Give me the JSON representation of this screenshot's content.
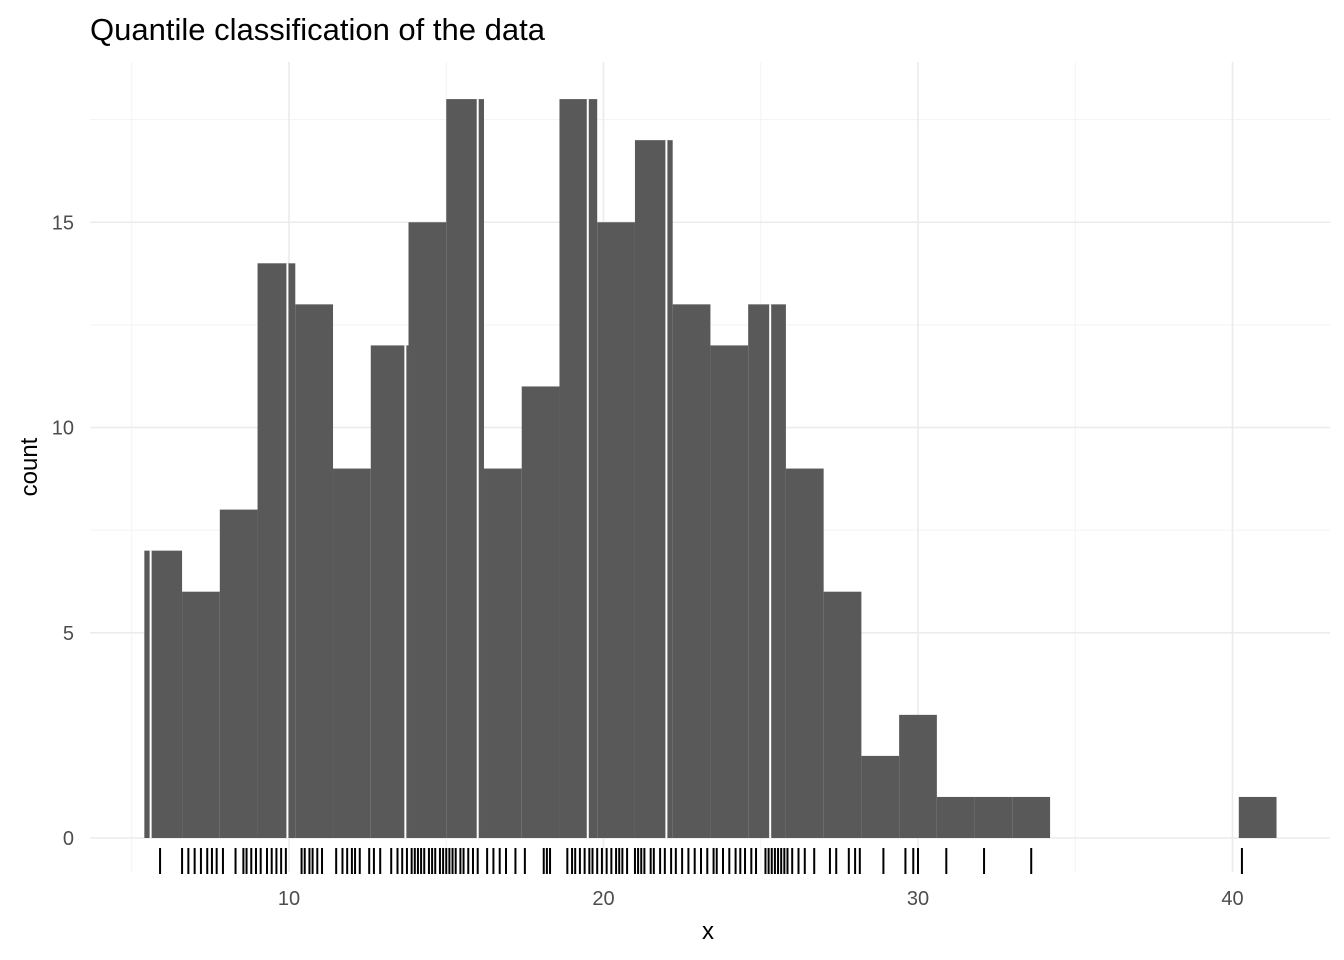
{
  "chart_data": {
    "type": "bar",
    "title": "Quantile classification of the data",
    "xlabel": "x",
    "ylabel": "count",
    "xlim": [
      5,
      43
    ],
    "ylim": [
      0,
      18.9
    ],
    "x_ticks": [
      10,
      20,
      30,
      40
    ],
    "y_ticks": [
      0,
      5,
      10,
      15
    ],
    "x_tick_labels": [
      "10",
      "20",
      "30",
      "40"
    ],
    "y_tick_labels": [
      "0",
      "5",
      "10",
      "15"
    ],
    "grid": true,
    "legend": "none",
    "bin_width": 1.2,
    "bins": [
      {
        "x0": 5.4,
        "x1": 6.6,
        "count": 7
      },
      {
        "x0": 6.6,
        "x1": 7.8,
        "count": 6
      },
      {
        "x0": 7.8,
        "x1": 9.0,
        "count": 8
      },
      {
        "x0": 9.0,
        "x1": 10.2,
        "count": 14
      },
      {
        "x0": 10.2,
        "x1": 11.4,
        "count": 13
      },
      {
        "x0": 11.4,
        "x1": 12.6,
        "count": 9
      },
      {
        "x0": 12.6,
        "x1": 13.8,
        "count": 12
      },
      {
        "x0": 13.8,
        "x1": 15.0,
        "count": 15
      },
      {
        "x0": 15.0,
        "x1": 16.2,
        "count": 18
      },
      {
        "x0": 16.2,
        "x1": 17.4,
        "count": 9
      },
      {
        "x0": 17.4,
        "x1": 18.6,
        "count": 11
      },
      {
        "x0": 18.6,
        "x1": 19.8,
        "count": 18
      },
      {
        "x0": 19.8,
        "x1": 21.0,
        "count": 15
      },
      {
        "x0": 21.0,
        "x1": 22.2,
        "count": 17
      },
      {
        "x0": 22.2,
        "x1": 23.4,
        "count": 13
      },
      {
        "x0": 23.4,
        "x1": 24.6,
        "count": 12
      },
      {
        "x0": 24.6,
        "x1": 25.8,
        "count": 13
      },
      {
        "x0": 25.8,
        "x1": 27.0,
        "count": 9
      },
      {
        "x0": 27.0,
        "x1": 28.2,
        "count": 6
      },
      {
        "x0": 28.2,
        "x1": 29.4,
        "count": 2
      },
      {
        "x0": 29.4,
        "x1": 30.6,
        "count": 3
      },
      {
        "x0": 30.6,
        "x1": 31.8,
        "count": 1
      },
      {
        "x0": 31.8,
        "x1": 33.0,
        "count": 1
      },
      {
        "x0": 33.0,
        "x1": 34.2,
        "count": 1
      },
      {
        "x0": 40.2,
        "x1": 41.4,
        "count": 1
      }
    ],
    "class_breaks": [
      5.6,
      9.95,
      13.7,
      16.0,
      19.5,
      22.0,
      25.3,
      40.1
    ],
    "rug_values": [
      5.9,
      6.6,
      6.8,
      7.0,
      7.2,
      7.4,
      7.55,
      7.7,
      7.9,
      8.3,
      8.55,
      8.65,
      8.8,
      8.95,
      9.1,
      9.3,
      9.45,
      9.6,
      9.75,
      9.9,
      10.4,
      10.5,
      10.65,
      10.75,
      10.9,
      11.05,
      11.5,
      11.7,
      11.85,
      12.0,
      12.1,
      12.25,
      12.55,
      12.7,
      12.9,
      13.25,
      13.45,
      13.6,
      13.75,
      13.9,
      14.0,
      14.1,
      14.2,
      14.3,
      14.45,
      14.55,
      14.65,
      14.8,
      14.9,
      15.0,
      15.1,
      15.2,
      15.3,
      15.45,
      15.55,
      15.7,
      15.85,
      16.0,
      16.3,
      16.5,
      16.7,
      16.9,
      17.2,
      17.5,
      18.1,
      18.2,
      18.3,
      18.85,
      19.0,
      19.1,
      19.25,
      19.4,
      19.55,
      19.65,
      19.8,
      19.95,
      20.1,
      20.25,
      20.4,
      20.5,
      20.6,
      20.75,
      21.0,
      21.1,
      21.2,
      21.3,
      21.5,
      21.6,
      21.8,
      21.95,
      22.15,
      22.3,
      22.5,
      22.7,
      22.9,
      23.1,
      23.3,
      23.5,
      23.6,
      23.8,
      24.0,
      24.2,
      24.35,
      24.5,
      24.7,
      24.85,
      25.15,
      25.25,
      25.35,
      25.45,
      25.55,
      25.65,
      25.75,
      25.85,
      26.0,
      26.2,
      26.4,
      26.7,
      27.2,
      27.4,
      27.8,
      28.0,
      28.15,
      28.9,
      29.6,
      29.85,
      30.0,
      30.9,
      32.1,
      33.6,
      40.3
    ]
  }
}
